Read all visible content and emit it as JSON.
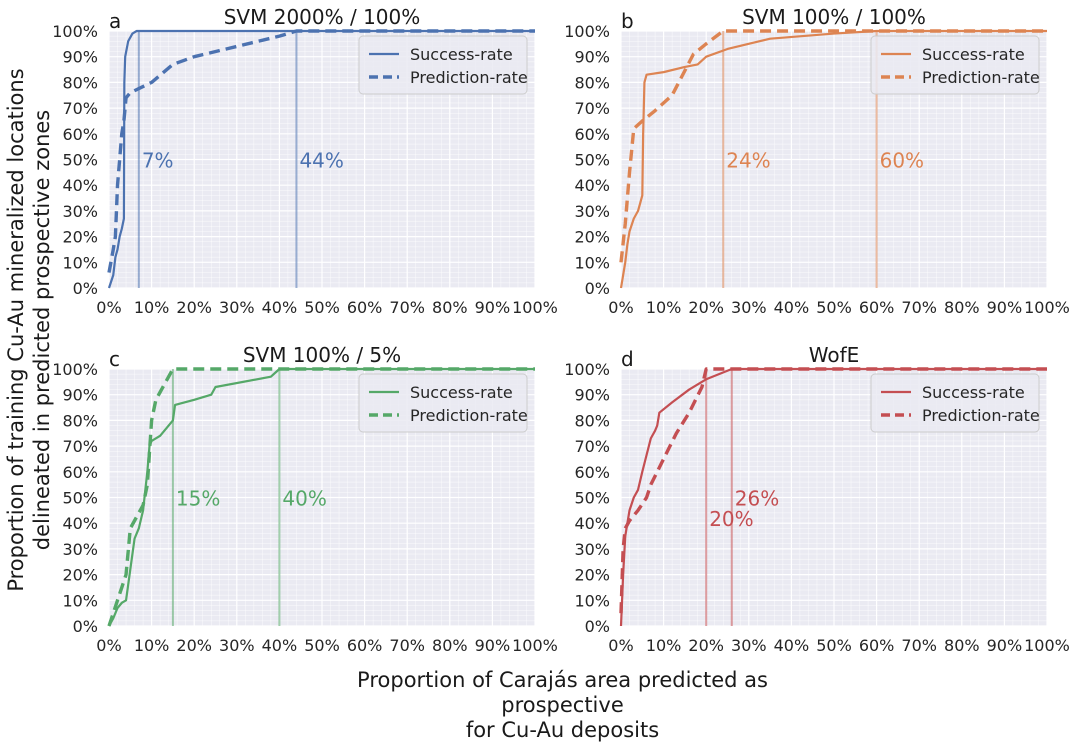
{
  "figure": {
    "ylabel_lines": [
      "Proportion of training Cu-Au mineralized locations",
      "delineated in predicted prospective zones"
    ],
    "xlabel_lines": [
      "Proportion of Carajás area predicted as prospective",
      "for Cu-Au deposits"
    ]
  },
  "chart_data": [
    {
      "type": "line",
      "panel": "a",
      "title": "SVM 2000% / 100%",
      "color": "#4c72b0",
      "xlim": [
        0,
        100
      ],
      "ylim": [
        0,
        100
      ],
      "xticks": [
        "0%",
        "10%",
        "20%",
        "30%",
        "40%",
        "50%",
        "60%",
        "70%",
        "80%",
        "90%",
        "100%"
      ],
      "yticks": [
        "0%",
        "10%",
        "20%",
        "30%",
        "40%",
        "50%",
        "60%",
        "70%",
        "80%",
        "90%",
        "100%"
      ],
      "legend": [
        "Success-rate",
        "Prediction-rate"
      ],
      "legend_position": "top-right",
      "grid": true,
      "series": [
        {
          "name": "Success-rate",
          "style": "solid",
          "x": [
            0,
            1,
            1.5,
            2,
            2.5,
            3,
            3.5,
            3.6,
            3.8,
            4.5,
            5.5,
            6.5,
            7,
            8,
            100
          ],
          "y": [
            0,
            5,
            12,
            15,
            20,
            23,
            27,
            80,
            90,
            96,
            99,
            100,
            100,
            100,
            100
          ]
        },
        {
          "name": "Prediction-rate",
          "style": "dashed",
          "x": [
            0,
            1,
            1.5,
            2,
            3,
            3.5,
            4,
            5,
            10,
            15,
            20,
            30,
            40,
            44,
            100
          ],
          "y": [
            6,
            15,
            20,
            40,
            60,
            65,
            74,
            76,
            80,
            87,
            90,
            94,
            98,
            100,
            100
          ]
        }
      ],
      "vlines": [
        {
          "x": 7,
          "label": "7%",
          "label_y": 50
        },
        {
          "x": 44,
          "label": "44%",
          "label_y": 50
        }
      ]
    },
    {
      "type": "line",
      "panel": "b",
      "title": "SVM 100% / 100%",
      "color": "#dd8452",
      "xlim": [
        0,
        100
      ],
      "ylim": [
        0,
        100
      ],
      "xticks": [
        "0%",
        "10%",
        "20%",
        "30%",
        "40%",
        "50%",
        "60%",
        "70%",
        "80%",
        "90%",
        "100%"
      ],
      "yticks": [
        "0%",
        "10%",
        "20%",
        "30%",
        "40%",
        "50%",
        "60%",
        "70%",
        "80%",
        "90%",
        "100%"
      ],
      "legend": [
        "Success-rate",
        "Prediction-rate"
      ],
      "legend_position": "top-right",
      "grid": true,
      "series": [
        {
          "name": "Success-rate",
          "style": "solid",
          "x": [
            0,
            0.5,
            1,
            1.5,
            2,
            3,
            4,
            5,
            5.2,
            5.5,
            6,
            10,
            15,
            18,
            20,
            25,
            35,
            50,
            60,
            100
          ],
          "y": [
            0,
            5,
            10,
            17,
            22,
            27,
            30,
            36,
            60,
            80,
            83,
            84,
            86,
            87,
            90,
            93,
            97,
            99,
            100,
            100
          ]
        },
        {
          "name": "Prediction-rate",
          "style": "dashed",
          "x": [
            0,
            1,
            2,
            3,
            5,
            8,
            12,
            17,
            20,
            24,
            100
          ],
          "y": [
            10,
            25,
            45,
            62,
            65,
            69,
            75,
            91,
            95,
            100,
            100
          ]
        }
      ],
      "vlines": [
        {
          "x": 24,
          "label": "24%",
          "label_y": 50
        },
        {
          "x": 60,
          "label": "60%",
          "label_y": 50
        }
      ]
    },
    {
      "type": "line",
      "panel": "c",
      "title": "SVM 100% / 5%",
      "color": "#55a868",
      "xlim": [
        0,
        100
      ],
      "ylim": [
        0,
        100
      ],
      "xticks": [
        "0%",
        "10%",
        "20%",
        "30%",
        "40%",
        "50%",
        "60%",
        "70%",
        "80%",
        "90%",
        "100%"
      ],
      "yticks": [
        "0%",
        "10%",
        "20%",
        "30%",
        "40%",
        "50%",
        "60%",
        "70%",
        "80%",
        "90%",
        "100%"
      ],
      "legend": [
        "Success-rate",
        "Prediction-rate"
      ],
      "legend_position": "top-right",
      "grid": true,
      "series": [
        {
          "name": "Success-rate",
          "style": "solid",
          "x": [
            0,
            1,
            2,
            3,
            4,
            5,
            6,
            7,
            8,
            9,
            9.5,
            10,
            12,
            14,
            15,
            15.5,
            20,
            24,
            25,
            38,
            40,
            100
          ],
          "y": [
            0,
            3,
            7,
            9,
            10,
            22,
            34,
            38,
            45,
            60,
            70,
            72,
            74,
            78,
            80,
            86,
            88,
            90,
            93,
            97,
            100,
            100
          ]
        },
        {
          "name": "Prediction-rate",
          "style": "dashed",
          "x": [
            0,
            2,
            4,
            5,
            7,
            8,
            9,
            10,
            11,
            12,
            14,
            15,
            100
          ],
          "y": [
            0,
            10,
            20,
            38,
            44,
            47,
            55,
            80,
            88,
            91,
            97,
            100,
            100
          ]
        }
      ],
      "vlines": [
        {
          "x": 15,
          "label": "15%",
          "label_y": 50
        },
        {
          "x": 40,
          "label": "40%",
          "label_y": 50
        }
      ]
    },
    {
      "type": "line",
      "panel": "d",
      "title": "WofE",
      "color": "#c44e52",
      "xlim": [
        0,
        100
      ],
      "ylim": [
        0,
        100
      ],
      "xticks": [
        "0%",
        "10%",
        "20%",
        "30%",
        "40%",
        "50%",
        "60%",
        "70%",
        "80%",
        "90%",
        "100%"
      ],
      "yticks": [
        "0%",
        "10%",
        "20%",
        "30%",
        "40%",
        "50%",
        "60%",
        "70%",
        "80%",
        "90%",
        "100%"
      ],
      "legend": [
        "Success-rate",
        "Prediction-rate"
      ],
      "legend_position": "top-right",
      "grid": true,
      "series": [
        {
          "name": "Success-rate",
          "style": "solid",
          "x": [
            0,
            0.5,
            1,
            2,
            3,
            4,
            5,
            7,
            8,
            8.5,
            9,
            12,
            16,
            20,
            26,
            100
          ],
          "y": [
            0,
            20,
            35,
            45,
            50,
            53,
            60,
            73,
            76,
            78,
            83,
            87,
            92,
            96,
            100,
            100
          ]
        },
        {
          "name": "Prediction-rate",
          "style": "dashed",
          "x": [
            0,
            0.5,
            1,
            2,
            4,
            6,
            7,
            10,
            13,
            16,
            19,
            20,
            100
          ],
          "y": [
            5,
            30,
            38,
            41,
            45,
            50,
            55,
            65,
            75,
            83,
            93,
            100,
            100
          ]
        }
      ],
      "vlines": [
        {
          "x": 20,
          "label": "20%",
          "label_y": 42
        },
        {
          "x": 26,
          "label": "26%",
          "label_y": 50
        }
      ]
    }
  ]
}
